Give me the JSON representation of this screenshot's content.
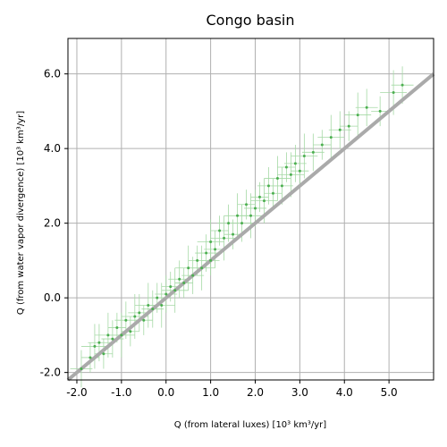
{
  "chart_data": {
    "type": "scatter",
    "title": "Congo basin",
    "xlabel": "Q (from lateral luxes) [10³ km³/yr]",
    "ylabel": "Q (from water vapor divergence) [10³ km³/yr]",
    "xlim": [
      -2.2,
      6.0
    ],
    "ylim": [
      -2.2,
      6.95
    ],
    "xticks": [
      {
        "value": -2,
        "label": "-2.0"
      },
      {
        "value": -1,
        "label": "-1.0"
      },
      {
        "value": 0,
        "label": "0.0"
      },
      {
        "value": 1,
        "label": "1.0"
      },
      {
        "value": 2,
        "label": "2.0"
      },
      {
        "value": 3,
        "label": "3.0"
      },
      {
        "value": 4,
        "label": "4.0"
      },
      {
        "value": 5,
        "label": "5.0"
      }
    ],
    "yticks": [
      {
        "value": -2,
        "label": "-2.0"
      },
      {
        "value": 0,
        "label": "0.0"
      },
      {
        "value": 2,
        "label": "2.0"
      },
      {
        "value": 4,
        "label": "4.0"
      },
      {
        "value": 6,
        "label": "6.0"
      }
    ],
    "grid": true,
    "color": "#4caf50",
    "error_color": "#a5d9a5",
    "line_color": "#aaaaaa",
    "x": [
      -1.9,
      -1.7,
      -1.6,
      -1.5,
      -1.4,
      -1.3,
      -1.2,
      -1.1,
      -1.0,
      -0.9,
      -0.8,
      -0.7,
      -0.6,
      -0.5,
      -0.4,
      -0.3,
      -0.2,
      -0.1,
      0.0,
      0.1,
      0.2,
      0.3,
      0.4,
      0.5,
      0.6,
      0.7,
      0.8,
      0.9,
      1.0,
      1.0,
      1.1,
      1.2,
      1.3,
      1.4,
      1.5,
      1.6,
      1.7,
      1.8,
      1.9,
      2.0,
      2.1,
      2.2,
      2.3,
      2.4,
      2.5,
      2.6,
      2.7,
      2.8,
      2.9,
      3.0,
      3.1,
      3.3,
      3.5,
      3.7,
      3.9,
      4.1,
      4.3,
      4.5,
      4.8,
      5.1,
      5.3
    ],
    "values": [
      -1.9,
      -1.6,
      -1.3,
      -1.2,
      -1.5,
      -1.0,
      -1.1,
      -0.8,
      -1.0,
      -0.6,
      -0.9,
      -0.5,
      -0.4,
      -0.6,
      -0.2,
      -0.3,
      0.0,
      -0.2,
      0.1,
      0.3,
      0.2,
      0.5,
      0.4,
      0.8,
      0.6,
      1.0,
      0.8,
      1.2,
      1.0,
      1.5,
      1.3,
      1.8,
      1.6,
      2.0,
      1.7,
      2.2,
      2.0,
      2.5,
      2.2,
      2.4,
      2.7,
      2.6,
      3.0,
      2.8,
      3.2,
      3.0,
      3.5,
      3.3,
      3.6,
      3.4,
      3.8,
      3.9,
      4.1,
      4.3,
      4.5,
      4.6,
      4.9,
      5.1,
      5.0,
      5.5,
      5.7
    ],
    "xerr": [
      0.25,
      0.2,
      0.3,
      0.25,
      0.2,
      0.3,
      0.25,
      0.2,
      0.3,
      0.25,
      0.2,
      0.3,
      0.25,
      0.2,
      0.3,
      0.25,
      0.2,
      0.3,
      0.25,
      0.2,
      0.3,
      0.25,
      0.2,
      0.3,
      0.25,
      0.2,
      0.3,
      0.25,
      0.2,
      0.3,
      0.25,
      0.2,
      0.3,
      0.25,
      0.2,
      0.3,
      0.25,
      0.2,
      0.3,
      0.25,
      0.2,
      0.3,
      0.25,
      0.2,
      0.3,
      0.25,
      0.2,
      0.3,
      0.25,
      0.2,
      0.3,
      0.25,
      0.2,
      0.3,
      0.25,
      0.2,
      0.3,
      0.25,
      0.2,
      0.3,
      0.25
    ],
    "yerr": [
      0.5,
      0.4,
      0.6,
      0.5,
      0.4,
      0.6,
      0.5,
      0.4,
      0.6,
      0.5,
      0.4,
      0.6,
      0.5,
      0.4,
      0.6,
      0.5,
      0.4,
      0.6,
      0.5,
      0.4,
      0.6,
      0.5,
      0.4,
      0.6,
      0.5,
      0.4,
      0.6,
      0.5,
      0.4,
      0.6,
      0.5,
      0.4,
      0.6,
      0.5,
      0.4,
      0.6,
      0.5,
      0.4,
      0.6,
      0.5,
      0.4,
      0.6,
      0.5,
      0.4,
      0.6,
      0.5,
      0.4,
      0.6,
      0.5,
      0.4,
      0.6,
      0.5,
      0.4,
      0.6,
      0.5,
      0.4,
      0.6,
      0.5,
      0.4,
      0.6,
      0.5
    ]
  }
}
